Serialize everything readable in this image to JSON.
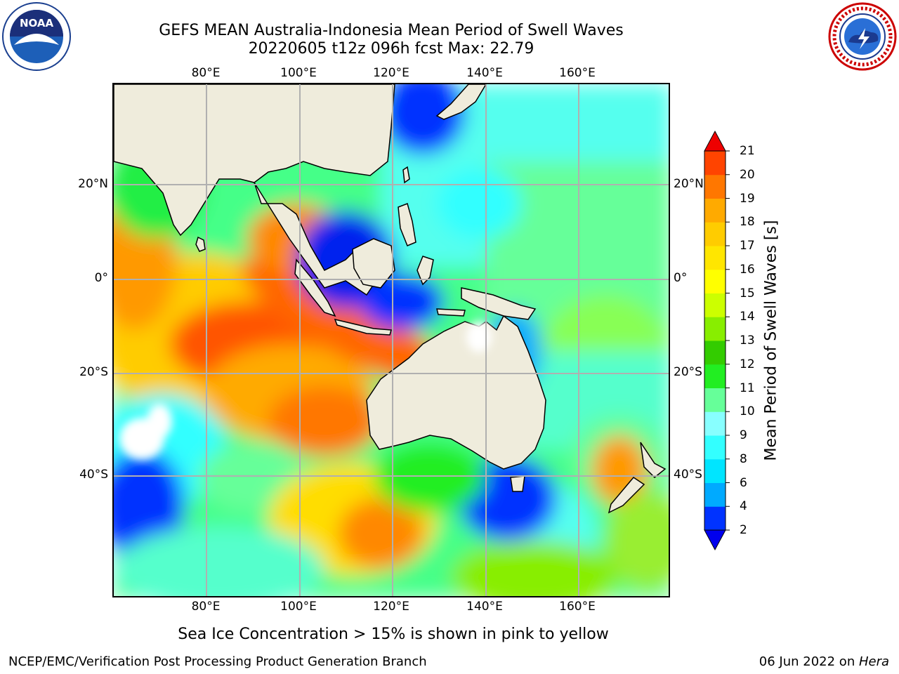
{
  "header": {
    "title_line1": "GEFS MEAN Australia-Indonesia Mean Period of Swell Waves",
    "title_line2": "20220605 t12z 096h fcst   Max: 22.79"
  },
  "logos": {
    "left": "noaa-logo",
    "right": "nws-logo"
  },
  "map": {
    "lon_labels": [
      "80°E",
      "100°E",
      "120°E",
      "140°E",
      "160°E"
    ],
    "lat_labels_left": [
      "20°N",
      "0°",
      "20°S",
      "40°S"
    ],
    "lat_labels_right": [
      "20°N",
      "0°",
      "20°S",
      "40°S"
    ],
    "land_color": "#efecdc",
    "grid_color": "#b0b0b0"
  },
  "colorbar": {
    "title": "Mean Period of Swell Waves [s]",
    "levels": [
      "2",
      "4",
      "6",
      "8",
      "9",
      "10",
      "11",
      "12",
      "13",
      "14",
      "15",
      "16",
      "17",
      "18",
      "19",
      "20",
      "21"
    ],
    "colors": [
      "#0033ff",
      "#00aaff",
      "#00e5ff",
      "#33ffff",
      "#88ffff",
      "#66ff99",
      "#22ee22",
      "#33cc00",
      "#88ee00",
      "#ccff00",
      "#ffff00",
      "#ffe600",
      "#ffcc00",
      "#ffaa00",
      "#ff7700",
      "#ff4400"
    ],
    "under_color": "#0000ee",
    "over_color": "#ee0000"
  },
  "footer": {
    "sea_ice_note": "Sea Ice Concentration > 15% is shown in pink to yellow",
    "left": "NCEP/EMC/Verification Post Processing Product Generation Branch",
    "right_date": "06 Jun 2022 on ",
    "right_host": "Hera"
  }
}
